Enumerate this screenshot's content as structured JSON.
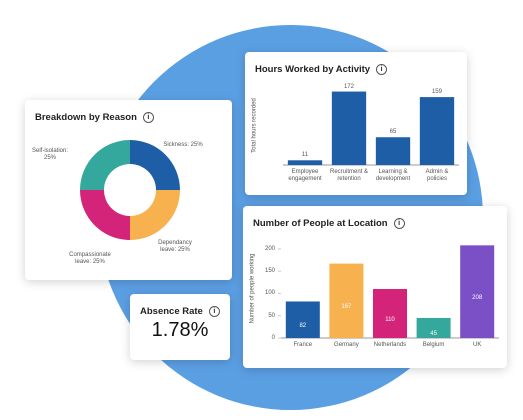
{
  "chart_data": [
    {
      "type": "pie",
      "title": "Breakdown by Reason",
      "values": [
        25,
        25,
        25,
        25
      ],
      "value_labels": [
        "Sickness: 25%",
        "Dependancy leave: 25%",
        "Compassionate leave: 25%",
        "Self-isolation: 25%"
      ],
      "colors": [
        "#1e5ea6",
        "#f7b14e",
        "#d4247a",
        "#35a89e"
      ]
    },
    {
      "type": "bar",
      "title": "Hours Worked by Activity",
      "ylabel": "Total hours recorded",
      "categories": [
        "Employee engagement",
        "Recruitment & retention",
        "Learning & development",
        "Admin & policies"
      ],
      "values": [
        11,
        172,
        65,
        159
      ],
      "colors": [
        "#1e5ea6",
        "#1e5ea6",
        "#1e5ea6",
        "#1e5ea6"
      ],
      "ylim": [
        0,
        185
      ],
      "labels_inside": false
    },
    {
      "type": "bar",
      "title": "Number of People at Location",
      "ylabel": "Number of people working",
      "categories": [
        "France",
        "Germany",
        "Netherlands",
        "Belgium",
        "UK"
      ],
      "values": [
        82,
        167,
        110,
        45,
        208
      ],
      "colors": [
        "#1e5ea6",
        "#f7b14e",
        "#d4247a",
        "#35a89e",
        "#7b4fc6"
      ],
      "ylim": [
        0,
        220
      ],
      "yticks": [
        0,
        50,
        100,
        150,
        200
      ],
      "labels_inside": true
    }
  ],
  "kpi": {
    "title": "Absence Rate",
    "value": "1.78%"
  }
}
